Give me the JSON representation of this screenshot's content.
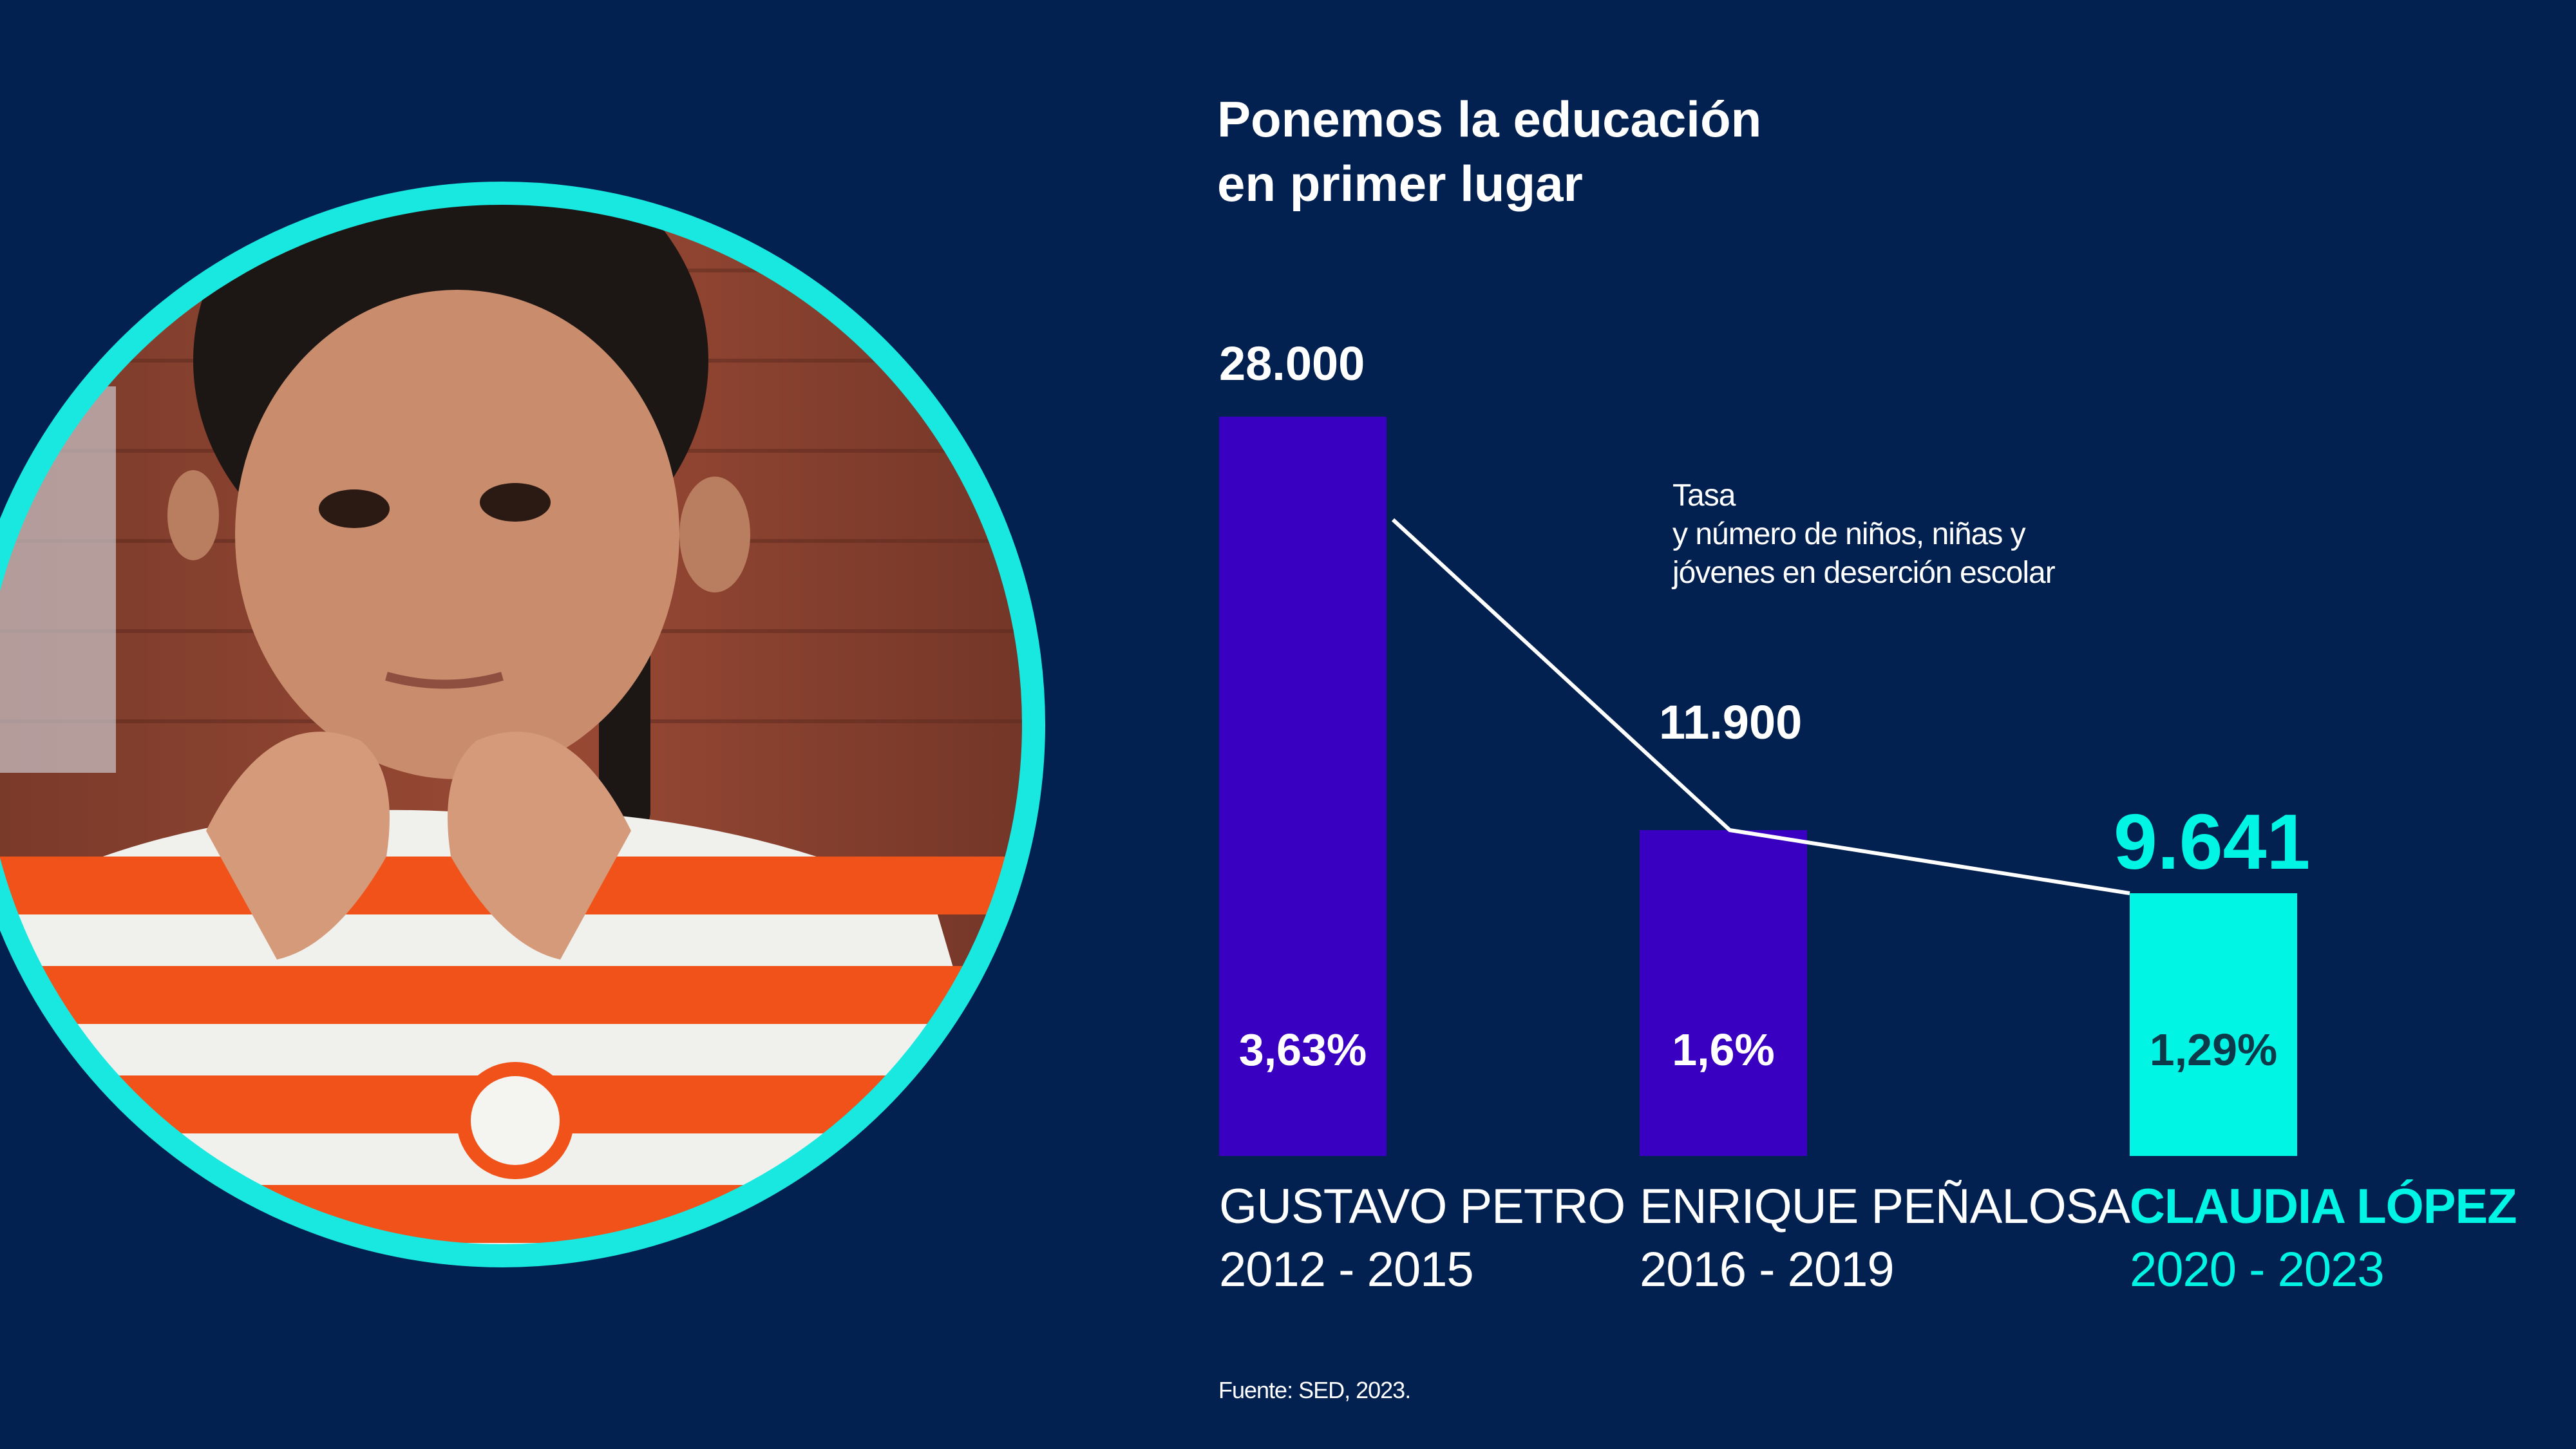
{
  "title": {
    "line1": "Ponemos la educación",
    "line2": "en primer lugar"
  },
  "caption": {
    "line1": "Tasa",
    "line2": "y número de niños, niñas y",
    "line3": "jóvenes en deserción escolar"
  },
  "source": "Fuente: SED, 2023.",
  "photo": {
    "subject": "girl-making-heart-with-hands"
  },
  "colors": {
    "background": "#032150",
    "bar_primary": "#3A00C2",
    "bar_highlight": "#00F5E4",
    "ring": "#19E8E0",
    "line": "#FFFFFF",
    "text": "#FFFFFF"
  },
  "chart_data": {
    "type": "bar",
    "title": "Ponemos la educación en primer lugar",
    "series_bar_label": "Tasa de deserción escolar",
    "series_line_label": "Número de niños, niñas y jóvenes en deserción escolar",
    "categories": [
      "GUSTAVO PETRO 2012 - 2015",
      "ENRIQUE PEÑALOSA 2016 - 2019",
      "CLAUDIA LÓPEZ 2020 - 2023"
    ],
    "mayors": [
      "GUSTAVO PETRO",
      "ENRIQUE PEÑALOSA",
      "CLAUDIA LÓPEZ"
    ],
    "periods": [
      "2012 - 2015",
      "2016 - 2019",
      "2020 - 2023"
    ],
    "rates": [
      3.63,
      1.6,
      1.29
    ],
    "rate_labels": [
      "3,63%",
      "1,6%",
      "1,29%"
    ],
    "counts": [
      28000,
      11900,
      9641
    ],
    "count_labels": [
      "28.000",
      "11.900",
      "9.641"
    ],
    "highlight_index": 2,
    "ylim": [
      0,
      3.63
    ]
  }
}
